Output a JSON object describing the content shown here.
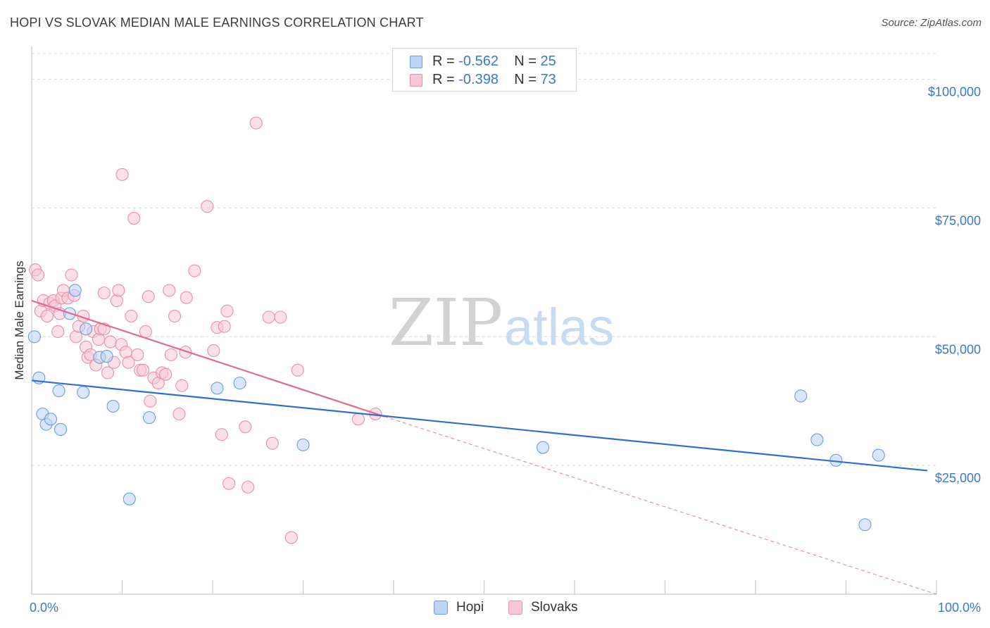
{
  "header": {
    "title": "HOPI VS SLOVAK MEDIAN MALE EARNINGS CORRELATION CHART",
    "source": "Source: ZipAtlas.com"
  },
  "watermark": {
    "zip": "ZIP",
    "atlas": "atlas"
  },
  "legend": {
    "rows": [
      {
        "r_label": "R = ",
        "r_value": "-0.562",
        "n_label": "N = ",
        "n_value": "25",
        "fill": "#bcd4f5",
        "stroke": "#6b9de0"
      },
      {
        "r_label": "R = ",
        "r_value": "-0.398",
        "n_label": "N = ",
        "n_value": "73",
        "fill": "#f8c6d6",
        "stroke": "#e88fab"
      }
    ]
  },
  "bottom_legend": [
    {
      "label": "Hopi",
      "fill": "#bcd4f5",
      "stroke": "#6b9de0"
    },
    {
      "label": "Slovaks",
      "fill": "#f8c6d6",
      "stroke": "#e88fab"
    }
  ],
  "chart_data": {
    "type": "scatter",
    "title": "HOPI VS SLOVAK MEDIAN MALE EARNINGS CORRELATION CHART",
    "xlabel": "",
    "ylabel": "Median Male Earnings",
    "xlim": [
      0,
      100
    ],
    "ylim": [
      0,
      105000
    ],
    "x_tick_labels": [
      "0.0%",
      "100.0%"
    ],
    "y_ticks": [
      {
        "value": 25000,
        "label": "$25,000"
      },
      {
        "value": 50000,
        "label": "$50,000"
      },
      {
        "value": 75000,
        "label": "$75,000"
      },
      {
        "value": 100000,
        "label": "$100,000"
      }
    ],
    "grid": true,
    "legend_position": "top-center",
    "series": [
      {
        "name": "Hopi",
        "color": "#6b9de0",
        "fill": "#bcd4f5",
        "points": [
          [
            0.3,
            50000
          ],
          [
            0.8,
            42000
          ],
          [
            1.2,
            35000
          ],
          [
            1.6,
            33000
          ],
          [
            2.1,
            34000
          ],
          [
            3.0,
            39500
          ],
          [
            3.2,
            32000
          ],
          [
            4.2,
            54500
          ],
          [
            4.8,
            59000
          ],
          [
            5.7,
            39200
          ],
          [
            6.0,
            51500
          ],
          [
            7.5,
            46000
          ],
          [
            8.3,
            46200
          ],
          [
            9.0,
            36500
          ],
          [
            10.8,
            18500
          ],
          [
            13.0,
            34300
          ],
          [
            20.5,
            40000
          ],
          [
            23.0,
            41000
          ],
          [
            30.0,
            29000
          ],
          [
            56.5,
            28500
          ],
          [
            85.0,
            38500
          ],
          [
            86.8,
            30000
          ],
          [
            88.9,
            26000
          ],
          [
            92.1,
            13500
          ],
          [
            93.6,
            27000
          ]
        ],
        "trend": {
          "x": [
            0,
            99
          ],
          "y": [
            41500,
            24000
          ]
        }
      },
      {
        "name": "Slovaks",
        "color": "#e88fab",
        "fill": "#f8c6d6",
        "points": [
          [
            0.4,
            63000
          ],
          [
            0.7,
            62000
          ],
          [
            1.0,
            55000
          ],
          [
            1.3,
            57000
          ],
          [
            1.7,
            54000
          ],
          [
            2.0,
            56500
          ],
          [
            2.4,
            57000
          ],
          [
            2.6,
            56000
          ],
          [
            2.9,
            51000
          ],
          [
            3.1,
            54500
          ],
          [
            3.3,
            57500
          ],
          [
            3.5,
            59000
          ],
          [
            4.0,
            57500
          ],
          [
            4.4,
            62000
          ],
          [
            4.7,
            58000
          ],
          [
            4.9,
            50000
          ],
          [
            5.2,
            52000
          ],
          [
            5.7,
            54000
          ],
          [
            6.0,
            48000
          ],
          [
            6.2,
            46000
          ],
          [
            6.5,
            46500
          ],
          [
            6.8,
            51000
          ],
          [
            7.1,
            44500
          ],
          [
            7.4,
            49500
          ],
          [
            7.6,
            51500
          ],
          [
            8.0,
            51500
          ],
          [
            8.0,
            58500
          ],
          [
            8.4,
            43000
          ],
          [
            8.7,
            49000
          ],
          [
            9.1,
            45000
          ],
          [
            9.4,
            57000
          ],
          [
            9.6,
            59000
          ],
          [
            9.9,
            48500
          ],
          [
            10.0,
            81500
          ],
          [
            10.4,
            47000
          ],
          [
            10.7,
            45000
          ],
          [
            11.0,
            54000
          ],
          [
            11.3,
            73000
          ],
          [
            11.7,
            46500
          ],
          [
            12.0,
            43500
          ],
          [
            12.3,
            43500
          ],
          [
            12.6,
            51000
          ],
          [
            12.9,
            57800
          ],
          [
            13.1,
            37500
          ],
          [
            13.5,
            42000
          ],
          [
            14.0,
            41000
          ],
          [
            14.4,
            43000
          ],
          [
            14.8,
            42700
          ],
          [
            15.2,
            59000
          ],
          [
            15.4,
            46500
          ],
          [
            15.8,
            54000
          ],
          [
            16.3,
            35000
          ],
          [
            16.6,
            40500
          ],
          [
            17.0,
            47000
          ],
          [
            17.1,
            57600
          ],
          [
            18.0,
            62800
          ],
          [
            19.4,
            75300
          ],
          [
            20.1,
            47300
          ],
          [
            20.5,
            51800
          ],
          [
            21.0,
            31000
          ],
          [
            21.3,
            52000
          ],
          [
            21.6,
            55000
          ],
          [
            21.8,
            21500
          ],
          [
            23.6,
            32500
          ],
          [
            23.9,
            20800
          ],
          [
            24.8,
            91500
          ],
          [
            26.2,
            53800
          ],
          [
            26.6,
            29300
          ],
          [
            27.5,
            53800
          ],
          [
            28.7,
            11000
          ],
          [
            29.4,
            43500
          ],
          [
            36.1,
            34000
          ],
          [
            38.0,
            35000
          ]
        ],
        "trend": {
          "x": [
            0,
            39
          ],
          "y": [
            57000,
            34500
          ]
        },
        "trend_extension": {
          "x": [
            39,
            100
          ],
          "y": [
            34500,
            0
          ]
        }
      }
    ]
  }
}
